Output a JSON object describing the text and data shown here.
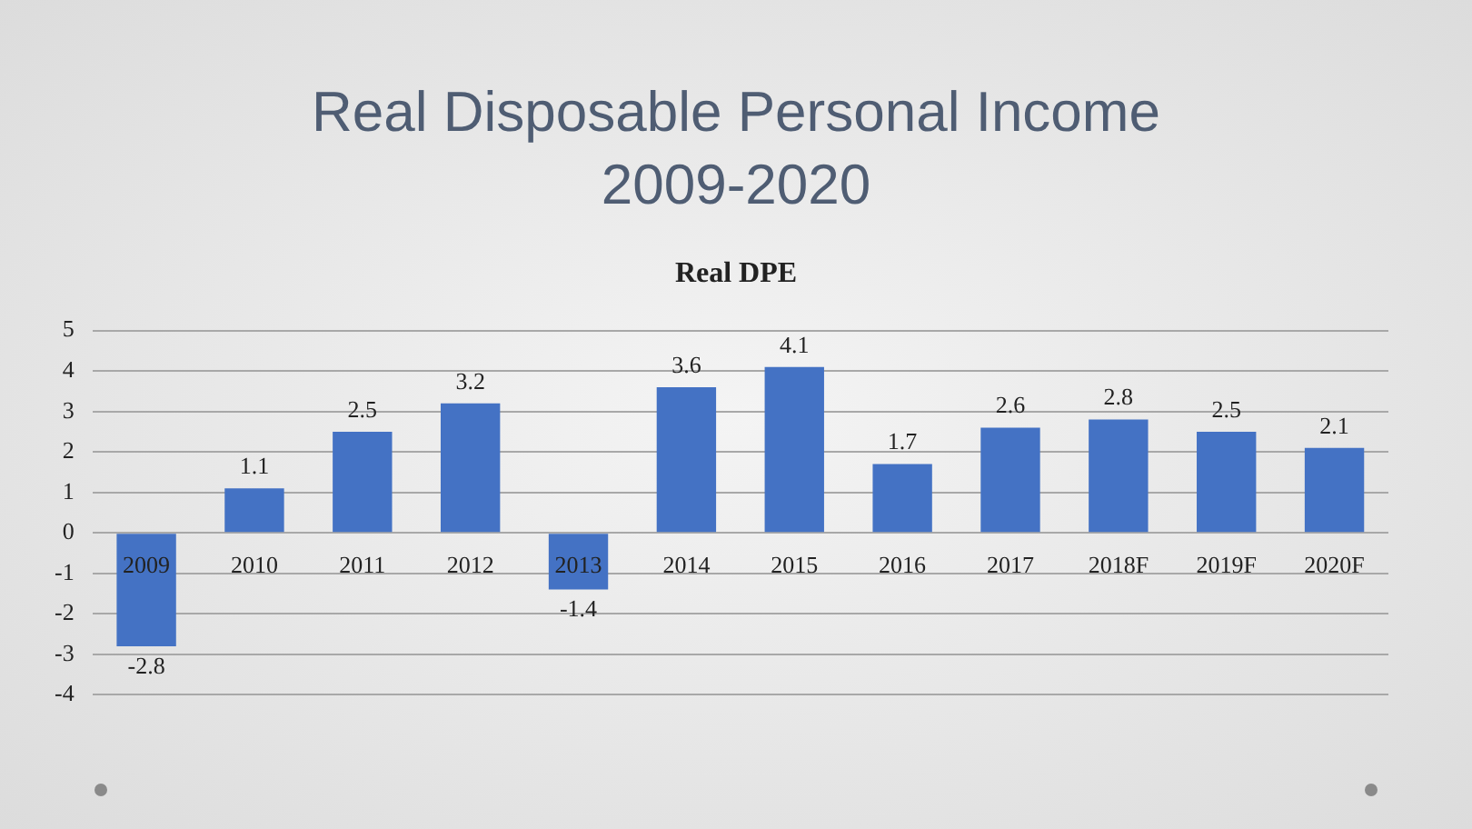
{
  "chart_data": {
    "type": "bar",
    "title": "Real Disposable Personal Income\n2009-2020",
    "subtitle": "Real DPE",
    "categories": [
      "2009",
      "2010",
      "2011",
      "2012",
      "2013",
      "2014",
      "2015",
      "2016",
      "2017",
      "2018F",
      "2019F",
      "2020F"
    ],
    "values": [
      -2.8,
      1.1,
      2.5,
      3.2,
      -1.4,
      3.6,
      4.1,
      1.7,
      2.6,
      2.8,
      2.5,
      2.1
    ],
    "color": "#4472c4",
    "ylim": [
      -4,
      5
    ],
    "yticks": [
      -4,
      -3,
      -2,
      -1,
      0,
      1,
      2,
      3,
      4,
      5
    ],
    "grid": "y",
    "data_labels": true,
    "legend": false
  }
}
